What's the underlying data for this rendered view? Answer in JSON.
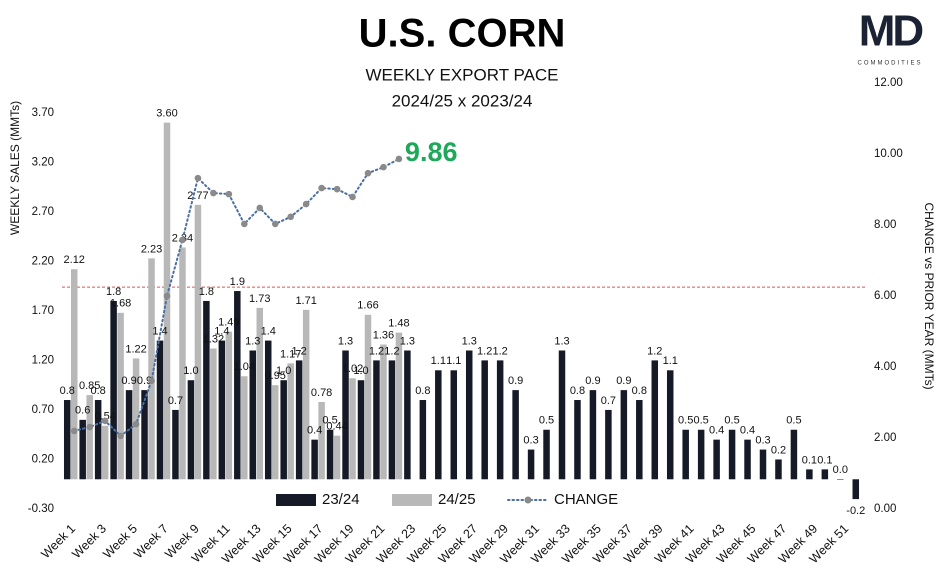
{
  "chart_data": {
    "type": "bar",
    "title": "U.S. CORN",
    "subtitle": "WEEKLY EXPORT PACE",
    "subtitle2": "2024/25 x 2023/24",
    "logo": {
      "text": "MD",
      "subtitle": "COMMODITIES"
    },
    "ylabel": "WEEKLY SALES (MMTs)",
    "y2label": "CHANGE vs PRIOR YEAR (MMTs)",
    "categories": [
      "Week 1",
      null,
      "Week 3",
      null,
      "Week 5",
      null,
      "Week 7",
      null,
      "Week 9",
      null,
      "Week 11",
      null,
      "Week 13",
      null,
      "Week 15",
      null,
      "Week 17",
      null,
      "Week 19",
      null,
      "Week 21",
      null,
      "Week 23",
      null,
      "Week 25",
      null,
      "Week 27",
      null,
      "Week 29",
      null,
      "Week 31",
      null,
      "Week 33",
      null,
      "Week 35",
      null,
      "Week 37",
      null,
      "Week 39",
      null,
      "Week 41",
      null,
      "Week 43",
      null,
      "Week 45",
      null,
      "Week 47",
      null,
      "Week 49",
      null,
      "Week 51",
      null
    ],
    "series": [
      {
        "name": "23/24",
        "color": "#151a26",
        "values": [
          0.8,
          0.6,
          0.8,
          1.8,
          0.9,
          0.9,
          1.4,
          0.7,
          1.0,
          1.8,
          1.4,
          1.9,
          1.3,
          1.4,
          1.0,
          1.2,
          0.4,
          0.5,
          1.3,
          1.0,
          1.2,
          1.2,
          1.3,
          0.8,
          1.1,
          1.1,
          1.3,
          1.2,
          1.2,
          0.9,
          0.3,
          0.5,
          1.3,
          0.8,
          0.9,
          0.7,
          0.9,
          0.8,
          1.2,
          1.1,
          0.5,
          0.5,
          0.4,
          0.5,
          0.4,
          0.3,
          0.2,
          0.5,
          0.1,
          0.1,
          0.0,
          -0.2
        ],
        "value_labels": [
          "0.8",
          "0.6",
          "0.8",
          "1.8",
          "0.9",
          "0.9",
          "1.4",
          "0.7",
          "1.0",
          "1.8",
          "1.4",
          "1.9",
          "1.3",
          "1.4",
          "1.0",
          "1.2",
          "0.4",
          "0.5",
          "1.3",
          "1.0",
          "1.2",
          "1.2",
          "1.3",
          "0.8",
          "1.1",
          "1.1",
          "1.3",
          "1.2",
          "1.2",
          "0.9",
          "0.3",
          "0.5",
          "1.3",
          "0.8",
          "0.9",
          "0.7",
          "0.9",
          "0.8",
          "1.2",
          "1.1",
          "0.5",
          "0.5",
          "0.4",
          "0.5",
          "0.4",
          "0.3",
          "0.2",
          "0.5",
          "0.1",
          "0.1",
          "0.0",
          "-0.2"
        ]
      },
      {
        "name": "24/25",
        "color": "#b8b8b8",
        "values": [
          2.12,
          0.85,
          0.54,
          1.68,
          1.22,
          2.23,
          3.6,
          2.34,
          2.77,
          1.32,
          1.49,
          1.04,
          1.73,
          0.95,
          1.17,
          1.71,
          0.78,
          0.44,
          1.02,
          1.66,
          1.36,
          1.48,
          null,
          null,
          null,
          null,
          null,
          null,
          null,
          null,
          null,
          null,
          null,
          null,
          null,
          null,
          null,
          null,
          null,
          null,
          null,
          null,
          null,
          null,
          null,
          null,
          null,
          null,
          null,
          null,
          null,
          null
        ],
        "value_labels": [
          "2.12",
          "0.85",
          "0.54",
          "1.68",
          "1.22",
          "2.23",
          "3.60",
          "2.34",
          "2.77",
          "1.32",
          "1.49",
          "1.04",
          "1.73",
          "0.95",
          "1.17",
          "1.71",
          "0.78",
          "0.44",
          "1.02",
          "1.66",
          "1.36",
          "1.48",
          null,
          null,
          null,
          null,
          null,
          null,
          null,
          null,
          null,
          null,
          null,
          null,
          null,
          null,
          null,
          null,
          null,
          null,
          null,
          null,
          null,
          null,
          null,
          null,
          null,
          null,
          null,
          null,
          null,
          null
        ]
      },
      {
        "name": "CHANGE",
        "color": "#4a6fa5",
        "marker_color": "#8a8a8a",
        "axis": "y2",
        "values": [
          2.2,
          2.31,
          2.48,
          2.06,
          2.39,
          3.61,
          6.0,
          7.58,
          9.32,
          8.9,
          8.87,
          8.03,
          8.48,
          8.03,
          8.23,
          8.59,
          9.04,
          9.01,
          8.79,
          9.46,
          9.63,
          9.86,
          null,
          null,
          null,
          null,
          null,
          null,
          null,
          null,
          null,
          null,
          null,
          null,
          null,
          null,
          null,
          null,
          null,
          null,
          null,
          null,
          null,
          null,
          null,
          null,
          null,
          null,
          null,
          null,
          null,
          null
        ]
      }
    ],
    "annotation": {
      "text": "9.86",
      "color": "#1ea85a"
    },
    "reference_line": {
      "value": 6.25,
      "axis": "y2",
      "color": "#e05252"
    },
    "ylim": [
      -0.3,
      4.0
    ],
    "yticks": [
      {
        "value": -0.3,
        "label": "-0.30"
      },
      {
        "value": 0.2,
        "label": "0.20"
      },
      {
        "value": 0.7,
        "label": "0.70"
      },
      {
        "value": 1.2,
        "label": "1.20"
      },
      {
        "value": 1.7,
        "label": "1.70"
      },
      {
        "value": 2.2,
        "label": "2.20"
      },
      {
        "value": 2.7,
        "label": "2.70"
      },
      {
        "value": 3.2,
        "label": "3.20"
      },
      {
        "value": 3.7,
        "label": "3.70"
      }
    ],
    "y2lim": [
      0,
      12
    ],
    "y2ticks": [
      {
        "value": 0,
        "label": "0.00"
      },
      {
        "value": 2,
        "label": "2.00"
      },
      {
        "value": 4,
        "label": "4.00"
      },
      {
        "value": 6,
        "label": "6.00"
      },
      {
        "value": 8,
        "label": "8.00"
      },
      {
        "value": 10,
        "label": "10.00"
      },
      {
        "value": 12,
        "label": "12.00"
      }
    ],
    "grid": false,
    "legend": "bottom"
  }
}
